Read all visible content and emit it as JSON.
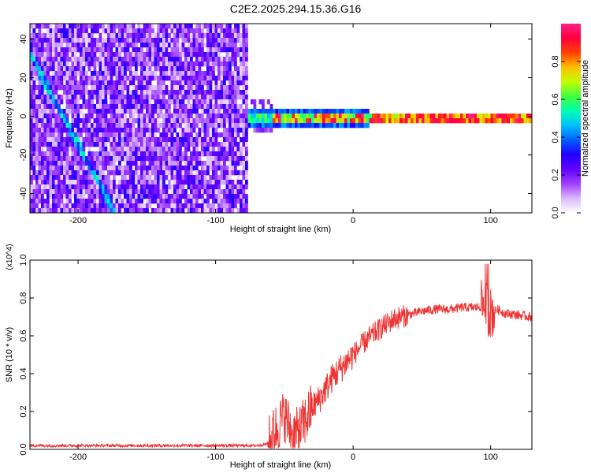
{
  "title": "C2E2.2025.294.15.36.G16",
  "chart_data": [
    {
      "type": "heatmap",
      "xlabel": "Height of straight line (km)",
      "ylabel": "Frequency (Hz)",
      "xlim": [
        -235,
        130
      ],
      "ylim": [
        -50,
        48
      ],
      "xticks": [
        -200,
        -100,
        0,
        100
      ],
      "yticks": [
        -40,
        -20,
        0,
        20,
        40
      ],
      "colorbar": {
        "label": "Normalized spectral amplitude",
        "range": [
          0,
          1
        ],
        "ticks": [
          "0.0",
          "0.2",
          "0.4",
          "0.6",
          "0.8"
        ],
        "colors": [
          "#ffffff",
          "#d9b8ff",
          "#a040ff",
          "#6000ff",
          "#2000ff",
          "#0060ff",
          "#00c0ff",
          "#00ffb0",
          "#40ff40",
          "#c0ff00",
          "#ffc000",
          "#ff4000",
          "#ff0040",
          "#ff2080"
        ]
      },
      "features": {
        "noise_region_x": [
          -235,
          -77
        ],
        "diagonal_streak": {
          "x": [
            -235,
            -175
          ],
          "y": [
            32,
            -48
          ]
        },
        "horizontal_band": {
          "x": [
            -77,
            130
          ],
          "y": 1
        }
      }
    },
    {
      "type": "line",
      "xlabel": "Height of straight line (km)",
      "ylabel": "SNR (10 * v/v)",
      "y_multiplier": "(x10^4)",
      "xlim": [
        -235,
        130
      ],
      "ylim": [
        0,
        1.0
      ],
      "xticks": [
        -200,
        -100,
        0,
        100
      ],
      "yticks": [
        "0.0",
        "0.2",
        "0.4",
        "0.6",
        "0.8",
        "1.0"
      ],
      "color": "#ee3333",
      "series": [
        {
          "x": [
            -235,
            -200,
            -150,
            -100,
            -70,
            -62,
            -55,
            -50,
            -45,
            -40,
            -35,
            -30,
            -25,
            -20,
            -15,
            -10,
            -5,
            0,
            5,
            10,
            20,
            30,
            40,
            50,
            60,
            70,
            80,
            90,
            95,
            100,
            105,
            110,
            120,
            130
          ],
          "y": [
            0.02,
            0.02,
            0.02,
            0.02,
            0.02,
            0.03,
            0.12,
            0.18,
            0.1,
            0.08,
            0.15,
            0.22,
            0.26,
            0.32,
            0.38,
            0.42,
            0.46,
            0.5,
            0.54,
            0.58,
            0.64,
            0.69,
            0.71,
            0.73,
            0.74,
            0.74,
            0.75,
            0.75,
            0.76,
            0.72,
            0.74,
            0.72,
            0.71,
            0.7
          ]
        }
      ]
    }
  ]
}
